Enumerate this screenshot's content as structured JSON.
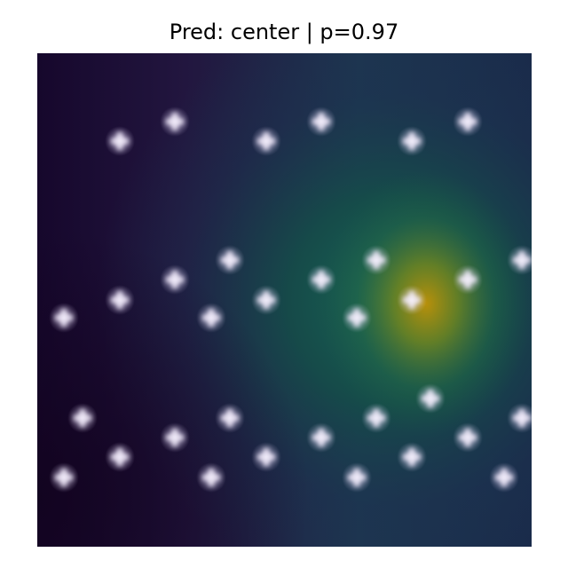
{
  "title": "Pred: center | p=0.97",
  "colors": {
    "background": "#ffffff",
    "heatmap_low": "#1b0b3a",
    "heatmap_mid": "#1d4a5a",
    "heatmap_high": "#c99a00",
    "marker": "#f0e6ff"
  },
  "overlay": {
    "type": "saliency-heatmap",
    "peak_region": "center-right"
  }
}
